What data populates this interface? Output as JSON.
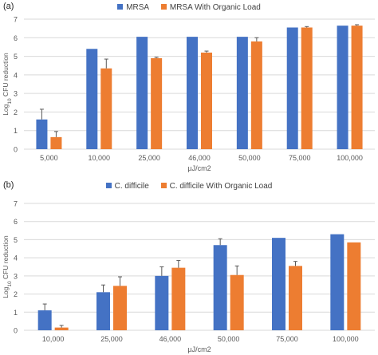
{
  "colors": {
    "series1": "#4472C4",
    "series2": "#ED7D31",
    "grid": "#d9d9d9",
    "text": "#595959",
    "errorbar": "#595959"
  },
  "chart_data": [
    {
      "panel": "(a)",
      "type": "bar",
      "categories": [
        "5,000",
        "10,000",
        "25,000",
        "46,000",
        "50,000",
        "75,000",
        "100,000"
      ],
      "series": [
        {
          "name": "MRSA",
          "values": [
            1.6,
            5.4,
            6.05,
            6.05,
            6.05,
            6.55,
            6.65
          ],
          "errors": [
            0.55,
            0,
            0,
            0,
            0,
            0,
            0
          ]
        },
        {
          "name": "MRSA With Organic Load",
          "values": [
            0.65,
            4.35,
            4.9,
            5.2,
            5.8,
            6.55,
            6.65
          ],
          "errors": [
            0.3,
            0.5,
            0.05,
            0.08,
            0.2,
            0.05,
            0.05
          ]
        }
      ],
      "xlabel": "µJ/cm2",
      "ylabel_base": "Log",
      "ylabel_sub": "10",
      "ylabel_rest": " CFU reduction",
      "ylim": [
        0,
        7
      ],
      "yticks": [
        "0",
        "1",
        "2",
        "3",
        "4",
        "5",
        "6",
        "7"
      ],
      "grid": true,
      "legend": "top-center"
    },
    {
      "panel": "(b)",
      "type": "bar",
      "categories": [
        "10,000",
        "25,000",
        "46,000",
        "50,000",
        "75,000",
        "100,000"
      ],
      "series": [
        {
          "name": "C. difficile",
          "values": [
            1.1,
            2.1,
            3.0,
            4.7,
            5.1,
            5.3
          ],
          "errors": [
            0.35,
            0.4,
            0.5,
            0.35,
            0,
            0
          ]
        },
        {
          "name": "C. difficile With Organic Load",
          "values": [
            0.15,
            2.45,
            3.45,
            3.05,
            3.55,
            4.85
          ],
          "errors": [
            0.12,
            0.5,
            0.4,
            0.5,
            0.25,
            0
          ]
        }
      ],
      "xlabel": "µJ/cm2",
      "ylabel_base": "Log",
      "ylabel_sub": "10",
      "ylabel_rest": " CFU reduction",
      "ylim": [
        0,
        7
      ],
      "yticks": [
        "0",
        "1",
        "2",
        "3",
        "4",
        "5",
        "6",
        "7"
      ],
      "grid": true,
      "legend": "top-center"
    }
  ]
}
